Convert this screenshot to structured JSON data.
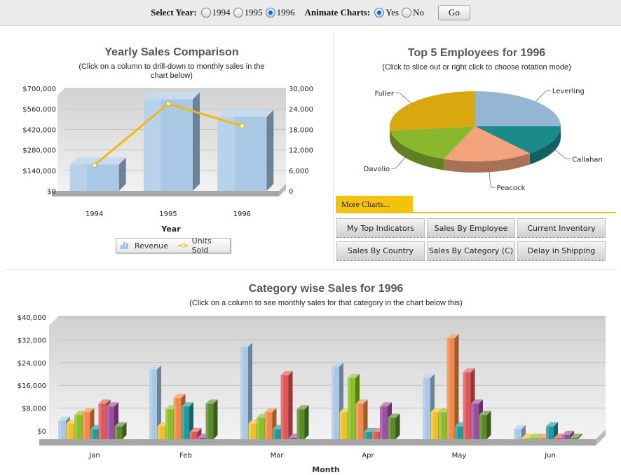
{
  "toolbar": {
    "select_year_label": "Select Year:",
    "years": [
      {
        "label": "1994",
        "selected": false
      },
      {
        "label": "1995",
        "selected": false
      },
      {
        "label": "1996",
        "selected": true
      }
    ],
    "animate_label": "Animate Charts:",
    "animate_options": [
      {
        "label": "Yes",
        "selected": true
      },
      {
        "label": "No",
        "selected": false
      }
    ],
    "go_label": "Go"
  },
  "yearly": {
    "title": "Yearly Sales Comparison",
    "subtitle_line1": "(Click on a column to drill-down to monthly sales in the",
    "subtitle_line2": "chart below)"
  },
  "employees": {
    "title": "Top 5 Employees for 1996",
    "subtitle": "(Click to slice out or right click to choose rotation mode)"
  },
  "category": {
    "title": "Category wise Sales for 1996",
    "subtitle": "(Click on a column to see monthly sales for that category in the chart below this)"
  },
  "more_charts": {
    "tab_label": "More Charts...",
    "buttons": [
      "My Top Indicators",
      "Sales By Employee",
      "Current Inventory",
      "Sales By Country",
      "Sales By Category (C)",
      "Delay in Shipping"
    ]
  },
  "colors": {
    "revenue_bar": "#a9c8e6",
    "units_line": "#f0b90b"
  },
  "chart_data": [
    {
      "type": "bar",
      "title": "Yearly Sales Comparison",
      "categories": [
        "1994",
        "1995",
        "1996"
      ],
      "xlabel": "Year",
      "ylim": [
        0,
        700000
      ],
      "y_ticks": [
        "$0",
        "$140,000",
        "$280,000",
        "$420,000",
        "$560,000",
        "$700,000"
      ],
      "y2lim": [
        0,
        30000
      ],
      "y2_ticks": [
        "0",
        "6,000",
        "12,000",
        "18,000",
        "24,000",
        "30,000"
      ],
      "series": [
        {
          "name": "Revenue",
          "values": [
            180000,
            625000,
            505000
          ]
        },
        {
          "name": "Units Sold",
          "values": [
            7500,
            25500,
            19000
          ]
        }
      ],
      "legend": "bottom"
    },
    {
      "type": "pie",
      "title": "Top 5 Employees for 1996",
      "labels": [
        "Leverling",
        "Callahan",
        "Peacock",
        "Davolio",
        "Fuller"
      ],
      "values": [
        25,
        14,
        17,
        17,
        27
      ],
      "colors": [
        "#94b6d4",
        "#1a8a8a",
        "#f2a37c",
        "#8bb72e",
        "#d9a80e"
      ]
    },
    {
      "type": "bar",
      "title": "Category wise Sales for 1996",
      "categories": [
        "Jan",
        "Feb",
        "Mar",
        "Apr",
        "May",
        "Jun"
      ],
      "xlabel": "Month",
      "ylim": [
        0,
        40000
      ],
      "y_ticks": [
        "$0",
        "$8,000",
        "$16,000",
        "$24,000",
        "$32,000",
        "$40,000"
      ],
      "series_colors": [
        "#a9c8e6",
        "#f0c02a",
        "#8bbf2a",
        "#f08a4b",
        "#1f9b9b",
        "#e0575a",
        "#9a4f9e",
        "#5a8a2a"
      ],
      "series": [
        {
          "values": [
            7000,
            25000,
            33000,
            26000,
            22000,
            4000
          ]
        },
        {
          "values": [
            6000,
            5000,
            6000,
            10000,
            10000,
            1000
          ]
        },
        {
          "values": [
            9000,
            11000,
            8000,
            22000,
            10000,
            1000
          ]
        },
        {
          "values": [
            10000,
            15000,
            10000,
            13000,
            36000,
            1000
          ]
        },
        {
          "values": [
            4000,
            12000,
            4000,
            3000,
            5000,
            5000
          ]
        },
        {
          "values": [
            13000,
            3000,
            23000,
            3000,
            24000,
            1000
          ]
        },
        {
          "values": [
            12000,
            1000,
            1000,
            12000,
            13000,
            2000
          ]
        },
        {
          "values": [
            5000,
            13000,
            11000,
            8000,
            9000,
            1000
          ]
        }
      ]
    }
  ]
}
